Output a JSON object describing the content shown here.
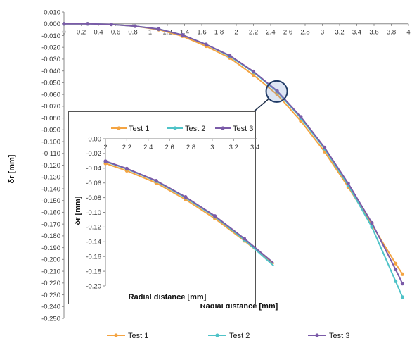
{
  "chart_data": [
    {
      "type": "line",
      "xlabel": "Radial distance [mm]",
      "ylabel": "δr [mm]",
      "xlim": [
        0,
        4
      ],
      "ylim": [
        -0.25,
        0.01
      ],
      "xticks": [
        "0",
        "0.2",
        "0.4",
        "0.6",
        "0.8",
        "1",
        "1.2",
        "1.4",
        "1.6",
        "1.8",
        "2",
        "2.2",
        "2.4",
        "2.6",
        "2.8",
        "3",
        "3.2",
        "3.4",
        "3.6",
        "3.8",
        "4"
      ],
      "yticks": [
        "0.010",
        "0.000",
        "-0.010",
        "-0.020",
        "-0.030",
        "-0.040",
        "-0.050",
        "-0.060",
        "-0.070",
        "-0.080",
        "-0.090",
        "-0.100",
        "-0.110",
        "-0.120",
        "-0.130",
        "-0.140",
        "-0.150",
        "-0.160",
        "-0.170",
        "-0.180",
        "-0.190",
        "-0.200",
        "-0.210",
        "-0.220",
        "-0.230",
        "-0.240",
        "-0.250"
      ],
      "legend_position": "bottom",
      "grid": false,
      "x": [
        0,
        0.275,
        0.55,
        0.825,
        1.1,
        1.375,
        1.65,
        1.925,
        2.2,
        2.475,
        2.75,
        3.025,
        3.3,
        3.575,
        3.85,
        3.93
      ],
      "series": [
        {
          "name": "Test 1",
          "color": "#F4A442",
          "values": [
            0.0,
            0.0,
            -0.0005,
            -0.002,
            -0.005,
            -0.0105,
            -0.019,
            -0.029,
            -0.0435,
            -0.06,
            -0.0825,
            -0.1085,
            -0.1385,
            -0.1705,
            -0.2035,
            -0.2125
          ]
        },
        {
          "name": "Test 2",
          "color": "#4FC3C8",
          "values": [
            0.0,
            0.0,
            -0.0005,
            -0.002,
            -0.0045,
            -0.0095,
            -0.0175,
            -0.0275,
            -0.041,
            -0.0575,
            -0.08,
            -0.106,
            -0.137,
            -0.1725,
            -0.2185,
            -0.232
          ]
        },
        {
          "name": "Test 3",
          "color": "#7B5BA8",
          "values": [
            0.0,
            0.0,
            -0.0005,
            -0.002,
            -0.0045,
            -0.0095,
            -0.0175,
            -0.027,
            -0.0405,
            -0.057,
            -0.079,
            -0.105,
            -0.1355,
            -0.169,
            -0.2085,
            -0.2205
          ]
        }
      ]
    },
    {
      "type": "line",
      "xlabel": "Radial distance [mm]",
      "ylabel": "δr [mm]",
      "xlim": [
        2,
        3.6
      ],
      "ylim": [
        -0.2,
        0.0
      ],
      "xticks": [
        "2",
        "2.2",
        "2.4",
        "2.6",
        "2.8",
        "3",
        "3.2",
        "3.4"
      ],
      "yticks": [
        "0.00",
        "-0.02",
        "-0.04",
        "-0.06",
        "-0.08",
        "-0.10",
        "-0.12",
        "-0.14",
        "-0.16",
        "-0.18",
        "-0.20"
      ],
      "legend_position": "top",
      "grid": false,
      "x": [
        2.0,
        2.2,
        2.475,
        2.75,
        3.025,
        3.3,
        3.575
      ],
      "series": [
        {
          "name": "Test 1",
          "color": "#F4A442",
          "values": [
            -0.0335,
            -0.0435,
            -0.06,
            -0.0825,
            -0.1085,
            -0.1385,
            -0.1705
          ]
        },
        {
          "name": "Test 2",
          "color": "#4FC3C8",
          "values": [
            -0.031,
            -0.041,
            -0.0575,
            -0.08,
            -0.106,
            -0.137,
            -0.1725
          ]
        },
        {
          "name": "Test 3",
          "color": "#7B5BA8",
          "values": [
            -0.0305,
            -0.0405,
            -0.057,
            -0.079,
            -0.105,
            -0.1355,
            -0.169
          ]
        }
      ]
    }
  ]
}
